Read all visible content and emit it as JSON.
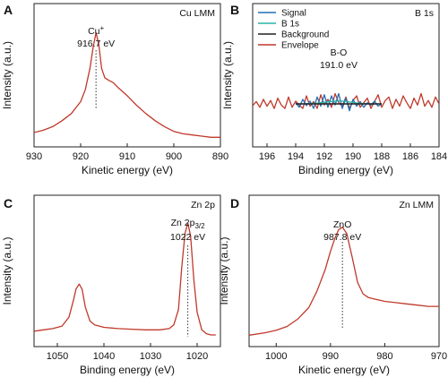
{
  "chart_data": [
    {
      "id": "A",
      "panel_label": "A",
      "type": "line",
      "corner_label": "Cu LMM",
      "xlabel": "Kinetic energy (eV)",
      "ylabel": "Intensity (a.u.)",
      "xlim": [
        930,
        890
      ],
      "xticks": [
        "930",
        "920",
        "910",
        "900",
        "890"
      ],
      "annotation": {
        "species": "Cu",
        "superscript": "+",
        "value": "916.7 eV",
        "x": 916.7
      },
      "series": [
        {
          "color": "#c0392b",
          "x": [
            932,
            930,
            928,
            926,
            924,
            922,
            920,
            919,
            918,
            917.3,
            916.7,
            916.1,
            915.5,
            914.8,
            914,
            913,
            912,
            910,
            908,
            906,
            904,
            902,
            900,
            898,
            896,
            894,
            892,
            890,
            889
          ],
          "y": [
            0.04,
            0.06,
            0.08,
            0.11,
            0.16,
            0.22,
            0.32,
            0.42,
            0.6,
            0.78,
            0.9,
            0.8,
            0.6,
            0.52,
            0.5,
            0.48,
            0.44,
            0.37,
            0.29,
            0.22,
            0.16,
            0.11,
            0.07,
            0.05,
            0.04,
            0.03,
            0.02,
            0.02,
            0.02
          ]
        }
      ]
    },
    {
      "id": "B",
      "panel_label": "B",
      "type": "line",
      "corner_label": "B 1s",
      "xlabel": "Binding energy (eV)",
      "ylabel": "Intensity (a.u.)",
      "xlim": [
        197,
        184
      ],
      "xticks": [
        "196",
        "194",
        "192",
        "190",
        "188",
        "186",
        "184"
      ],
      "annotation": {
        "species": "B-O",
        "value": "191.0 eV",
        "x": 191.0
      },
      "legend": [
        "Signal",
        "B 1s",
        "Background",
        "Envelope"
      ],
      "series": [
        {
          "name": "Envelope",
          "color": "#c0392b",
          "x": [
            197,
            196.75,
            196.5,
            196.25,
            196,
            195.75,
            195.5,
            195.25,
            195,
            194.75,
            194.5,
            194.25,
            194,
            193.75,
            193.5,
            193.25,
            193,
            192.75,
            192.5,
            192.25,
            192,
            191.75,
            191.5,
            191.25,
            191,
            190.75,
            190.5,
            190.25,
            190,
            189.75,
            189.5,
            189.25,
            189,
            188.75,
            188.5,
            188.25,
            188,
            187.75,
            187.5,
            187.25,
            187,
            186.75,
            186.5,
            186.25,
            186,
            185.75,
            185.5,
            185.25,
            185,
            184.75,
            184.5,
            184.25,
            184
          ],
          "y": [
            0.42,
            0.6,
            0.35,
            0.7,
            0.4,
            0.65,
            0.3,
            0.75,
            0.45,
            0.3,
            0.8,
            0.35,
            0.62,
            0.45,
            0.3,
            0.85,
            0.4,
            0.6,
            0.3,
            0.9,
            0.45,
            0.7,
            0.35,
            0.95,
            0.55,
            0.4,
            0.8,
            0.3,
            0.65,
            0.85,
            0.35,
            0.55,
            0.75,
            0.3,
            0.6,
            0.9,
            0.35,
            0.65,
            0.8,
            0.3,
            0.7,
            0.4,
            0.85,
            0.55,
            0.3,
            0.75,
            0.45,
            0.95,
            0.4,
            0.65,
            0.35,
            0.8,
            0.5
          ]
        },
        {
          "name": "Signal",
          "color": "#1f6fb5",
          "x": [
            194,
            193.75,
            193.5,
            193.25,
            193,
            192.75,
            192.5,
            192.25,
            192,
            191.75,
            191.5,
            191.25,
            191,
            190.75,
            190.5,
            190.25,
            190,
            189.75,
            189.5,
            189.25,
            189,
            188.75,
            188.5,
            188.25,
            188
          ],
          "y": [
            0.55,
            0.35,
            0.7,
            0.42,
            0.62,
            0.3,
            0.8,
            0.4,
            0.9,
            0.35,
            0.85,
            0.45,
            0.95,
            0.3,
            0.75,
            0.2,
            0.7,
            0.4,
            0.6,
            0.35,
            0.55,
            0.45,
            0.62,
            0.4,
            0.5
          ]
        },
        {
          "name": "B 1s",
          "color": "#2bb3a8",
          "x": [
            194,
            193.5,
            193,
            192.5,
            192,
            191.5,
            191,
            190.5,
            190,
            189.5,
            189,
            188.5,
            188
          ],
          "y": [
            0.5,
            0.5,
            0.51,
            0.53,
            0.57,
            0.61,
            0.63,
            0.61,
            0.56,
            0.52,
            0.505,
            0.5,
            0.5
          ]
        },
        {
          "name": "Background",
          "color": "#222222",
          "x": [
            194,
            188
          ],
          "y": [
            0.5,
            0.5
          ]
        }
      ]
    },
    {
      "id": "C",
      "panel_label": "C",
      "type": "line",
      "corner_label": "Zn 2p",
      "xlabel": "Binding energy (eV)",
      "ylabel": "Intensity (a.u.)",
      "xlim": [
        1055,
        1015
      ],
      "xticks": [
        "1050",
        "1040",
        "1030",
        "1020"
      ],
      "annotation": {
        "species": "Zn 2p",
        "subscript": "3/2",
        "value": "1022 eV",
        "x": 1022
      },
      "series": [
        {
          "color": "#c0392b",
          "x": [
            1055,
            1053,
            1051,
            1049,
            1047.5,
            1046.5,
            1046,
            1045.3,
            1044.7,
            1044,
            1043,
            1042,
            1040,
            1037,
            1034,
            1031,
            1028,
            1026,
            1025,
            1024,
            1023.3,
            1022.6,
            1022.0,
            1021.4,
            1020.7,
            1020,
            1019,
            1018,
            1017,
            1016
          ],
          "y": [
            0.05,
            0.06,
            0.07,
            0.09,
            0.16,
            0.3,
            0.38,
            0.42,
            0.38,
            0.24,
            0.13,
            0.1,
            0.08,
            0.07,
            0.065,
            0.06,
            0.06,
            0.07,
            0.1,
            0.22,
            0.55,
            0.82,
            0.9,
            0.8,
            0.45,
            0.2,
            0.06,
            0.03,
            0.02,
            0.02
          ]
        }
      ]
    },
    {
      "id": "D",
      "panel_label": "D",
      "type": "line",
      "corner_label": "Zn LMM",
      "xlabel": "Kinetic energy (eV)",
      "ylabel": "Intensity (a.u.)",
      "xlim": [
        1005,
        970
      ],
      "xticks": [
        "1000",
        "990",
        "980",
        "970"
      ],
      "annotation": {
        "species": "ZnO",
        "value": "987.8 eV",
        "x": 987.8
      },
      "series": [
        {
          "color": "#c0392b",
          "x": [
            1005,
            1002,
            1000,
            998,
            996,
            994,
            992.5,
            991,
            990,
            989.2,
            988.5,
            987.8,
            987,
            986,
            985,
            984,
            983,
            982,
            981,
            980,
            978,
            976,
            974,
            972,
            970
          ],
          "y": [
            0.03,
            0.05,
            0.07,
            0.1,
            0.16,
            0.25,
            0.38,
            0.55,
            0.7,
            0.8,
            0.87,
            0.89,
            0.84,
            0.65,
            0.45,
            0.36,
            0.33,
            0.32,
            0.31,
            0.3,
            0.29,
            0.28,
            0.27,
            0.26,
            0.26
          ]
        }
      ]
    }
  ]
}
